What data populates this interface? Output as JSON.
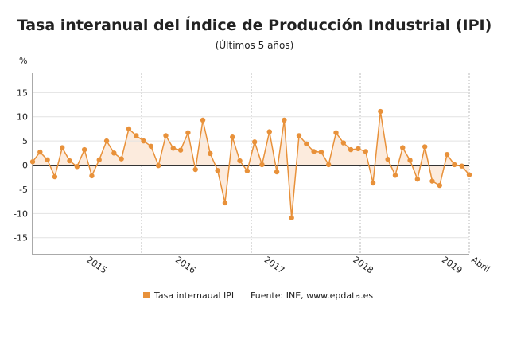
{
  "chart_data": {
    "type": "line",
    "title": "Tasa interanual del Índice de Producción Industrial (IPI)",
    "subtitle": "(Últimos 5 años)",
    "y_label": "%",
    "source": "Fuente: INE, www.epdata.es",
    "categories": [
      null,
      null,
      null,
      null,
      null,
      null,
      null,
      "2015",
      null,
      null,
      null,
      null,
      null,
      null,
      null,
      null,
      null,
      null,
      null,
      "2016",
      null,
      null,
      null,
      null,
      null,
      null,
      null,
      null,
      null,
      null,
      null,
      "2017",
      null,
      null,
      null,
      null,
      null,
      null,
      null,
      null,
      null,
      null,
      null,
      "2018",
      null,
      null,
      null,
      null,
      null,
      null,
      null,
      null,
      null,
      null,
      null,
      "2019",
      null,
      null,
      null,
      "Abril"
    ],
    "series": [
      {
        "name": "Tasa internaual IPI",
        "color": "#e8913a",
        "values": [
          0.7,
          2.7,
          1.1,
          -2.4,
          3.6,
          0.9,
          -0.3,
          3.2,
          -2.2,
          1.1,
          5.0,
          2.5,
          1.3,
          7.5,
          6.1,
          5.0,
          3.9,
          -0.1,
          6.1,
          3.5,
          3.1,
          6.7,
          -0.9,
          9.3,
          2.4,
          -1.1,
          -7.8,
          5.8,
          0.9,
          -1.2,
          4.8,
          0.1,
          6.9,
          -1.4,
          9.3,
          -10.9,
          6.1,
          4.4,
          2.8,
          2.7,
          0.1,
          6.7,
          4.6,
          3.2,
          3.4,
          2.8,
          -3.7,
          11.1,
          1.2,
          -2.1,
          3.6,
          1.0,
          -2.9,
          3.8,
          -3.3,
          -4.2,
          2.2,
          0.1,
          -0.2,
          -2.0
        ]
      }
    ],
    "ylim": [
      -18.5,
      19
    ],
    "yticks": [
      15,
      10,
      5,
      0,
      -5,
      -10,
      -15
    ],
    "grid": true,
    "area_fill": "#fcebdd"
  }
}
